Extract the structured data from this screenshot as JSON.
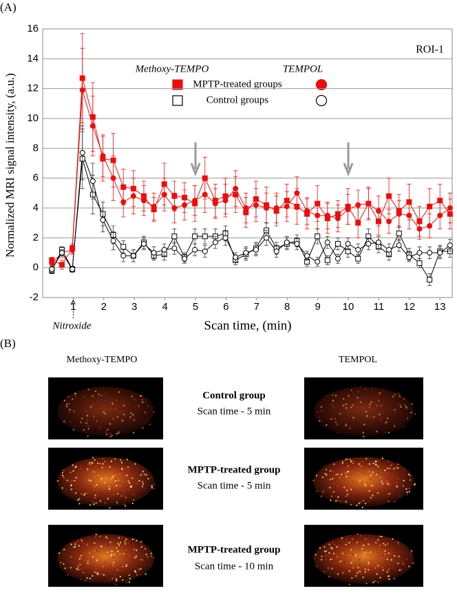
{
  "chart_data": {
    "type": "line",
    "panel_label": "(A)",
    "region": "ROI-1",
    "y_label": "Normalized MRI signal intensity, (a.u.)",
    "x_label": "Scan time, (min)",
    "annotations": [
      {
        "text": "Nitroxide",
        "x": 1
      }
    ],
    "arrows_x": [
      5,
      10
    ],
    "xlim": [
      0,
      13.4
    ],
    "ylim": [
      -2,
      16
    ],
    "xticks": [
      1,
      2,
      3,
      4,
      5,
      6,
      7,
      8,
      9,
      10,
      11,
      12,
      13
    ],
    "yticks": [
      -2,
      0,
      2,
      4,
      6,
      8,
      10,
      12,
      14,
      16
    ],
    "grid": true,
    "x": [
      0.3,
      0.63,
      0.97,
      1.3,
      1.64,
      1.97,
      2.31,
      2.64,
      2.97,
      3.31,
      3.64,
      3.98,
      4.31,
      4.64,
      4.98,
      5.31,
      5.65,
      5.98,
      6.31,
      6.65,
      6.98,
      7.32,
      7.65,
      7.99,
      8.32,
      8.65,
      8.99,
      9.32,
      9.66,
      9.99,
      10.32,
      10.66,
      10.99,
      11.33,
      11.66,
      11.99,
      12.33,
      12.66,
      13.0,
      13.33
    ],
    "series": [
      {
        "name": "MPTP-treated groups",
        "method": "Methoxy-TEMPO",
        "marker": "square",
        "color": "#e8100f",
        "values": [
          0.5,
          0.2,
          1.3,
          12.7,
          10.1,
          7.3,
          7.2,
          5.4,
          5.3,
          4.8,
          3.9,
          5.6,
          4.8,
          4.7,
          4.3,
          6.0,
          4.5,
          4.8,
          4.9,
          3.7,
          4.6,
          4.2,
          3.8,
          4.5,
          4.1,
          3.6,
          4.3,
          3.3,
          3.6,
          4.1,
          3.0,
          4.3,
          3.1,
          4.8,
          3.8,
          4.4,
          3.1,
          4.1,
          4.5,
          3.6
        ],
        "errors": [
          0.2,
          0.3,
          0.3,
          3.0,
          2.3,
          1.5,
          1.8,
          1.2,
          1.2,
          1.0,
          0.8,
          1.4,
          1.0,
          1.0,
          1.2,
          1.4,
          1.1,
          1.2,
          1.2,
          1.0,
          1.2,
          1.2,
          1.0,
          1.1,
          1.2,
          1.0,
          1.2,
          1.0,
          0.9,
          1.2,
          1.0,
          1.1,
          0.9,
          1.2,
          1.1,
          1.2,
          1.0,
          1.2,
          1.1,
          1.0
        ]
      },
      {
        "name": "MPTP-treated groups",
        "method": "TEMPOL",
        "marker": "circle",
        "color": "#e8100f",
        "values": [
          0.3,
          1.0,
          1.2,
          11.9,
          9.5,
          7.5,
          6.0,
          4.4,
          4.8,
          4.5,
          4.1,
          4.9,
          4.0,
          4.2,
          4.5,
          4.9,
          4.3,
          4.5,
          5.3,
          4.0,
          4.2,
          4.0,
          4.0,
          4.1,
          5.0,
          3.8,
          3.5,
          3.5,
          3.3,
          3.9,
          4.2,
          4.3,
          3.8,
          3.1,
          3.6,
          3.5,
          2.6,
          2.8,
          3.5,
          4.0
        ],
        "errors": [
          0.2,
          0.3,
          0.3,
          2.8,
          2.0,
          1.4,
          1.5,
          1.0,
          1.2,
          1.0,
          0.9,
          1.1,
          1.0,
          1.0,
          1.0,
          1.2,
          1.0,
          1.1,
          1.2,
          1.0,
          1.1,
          1.0,
          1.0,
          1.0,
          1.1,
          0.9,
          0.9,
          0.9,
          0.9,
          1.0,
          1.0,
          1.0,
          1.0,
          0.8,
          0.9,
          0.9,
          0.7,
          0.8,
          0.9,
          1.0
        ]
      },
      {
        "name": "Control groups",
        "method": "Methoxy-TEMPO",
        "marker": "square",
        "color": "#000000",
        "values": [
          -0.2,
          1.2,
          -0.1,
          7.3,
          4.9,
          3.6,
          2.2,
          1.4,
          0.8,
          1.7,
          0.8,
          0.9,
          2.1,
          0.7,
          2.1,
          2.1,
          2.1,
          2.3,
          0.5,
          0.9,
          1.3,
          2.5,
          1.3,
          1.6,
          1.8,
          0.4,
          2.1,
          0.5,
          1.6,
          1.1,
          0.6,
          2.1,
          1.4,
          0.9,
          2.3,
          0.9,
          0.3,
          -0.8,
          1.1,
          1.1
        ],
        "errors": [
          0.2,
          0.2,
          0.2,
          2.0,
          1.3,
          0.8,
          0.6,
          0.4,
          0.4,
          0.4,
          0.3,
          0.4,
          0.5,
          0.3,
          0.5,
          0.5,
          0.5,
          0.5,
          0.3,
          0.4,
          0.4,
          0.5,
          0.4,
          0.4,
          0.4,
          0.3,
          0.5,
          0.3,
          0.4,
          0.4,
          0.3,
          0.5,
          0.4,
          0.4,
          0.5,
          0.4,
          0.3,
          0.4,
          0.4,
          0.4
        ]
      },
      {
        "name": "Control groups",
        "method": "TEMPOL",
        "marker": "circle",
        "color": "#000000",
        "values": [
          -0.1,
          1.0,
          -0.1,
          7.7,
          5.8,
          3.2,
          1.8,
          0.8,
          0.8,
          1.6,
          1.0,
          1.2,
          1.3,
          0.6,
          1.2,
          1.1,
          1.7,
          2.0,
          0.7,
          1.0,
          1.2,
          2.0,
          1.1,
          1.7,
          1.6,
          0.8,
          0.4,
          1.7,
          0.6,
          1.6,
          1.2,
          1.6,
          1.7,
          1.2,
          1.5,
          0.7,
          1.0,
          1.0,
          1.0,
          1.5
        ],
        "errors": [
          0.2,
          0.2,
          0.2,
          1.8,
          1.2,
          0.8,
          0.6,
          0.4,
          0.4,
          0.4,
          0.4,
          0.4,
          0.4,
          0.3,
          0.4,
          0.4,
          0.4,
          0.5,
          0.3,
          0.4,
          0.4,
          0.5,
          0.4,
          0.4,
          0.4,
          0.3,
          0.3,
          0.4,
          0.3,
          0.4,
          0.4,
          0.4,
          0.4,
          0.4,
          0.4,
          0.3,
          0.4,
          0.4,
          0.4,
          0.4
        ]
      }
    ]
  },
  "panel_b": {
    "panel_label": "(B)",
    "columns": [
      "Methoxy-TEMPO",
      "TEMPOL"
    ],
    "rows": [
      {
        "title": "Control group",
        "subtitle": "Scan time - 5 min"
      },
      {
        "title": "MPTP-treated group",
        "subtitle": "Scan time - 5 min"
      },
      {
        "title": "MPTP-treated group",
        "subtitle": "Scan time - 10 min"
      }
    ]
  }
}
